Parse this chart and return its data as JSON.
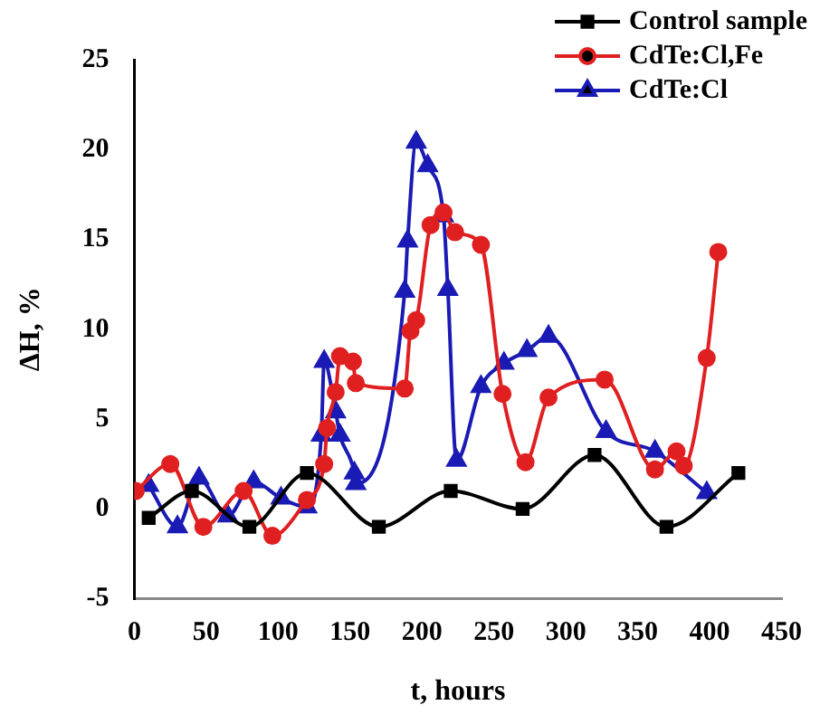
{
  "chart_data": {
    "type": "line",
    "xlabel": "t, hours",
    "ylabel": "ΔH, %",
    "xlim": [
      0,
      450
    ],
    "xticks": [
      0,
      50,
      100,
      150,
      200,
      250,
      300,
      350,
      400,
      450
    ],
    "ylim": [
      -5,
      25
    ],
    "yticks": [
      -5,
      0,
      5,
      10,
      15,
      20,
      25
    ],
    "grid": false,
    "legend": "top right",
    "line_style": "solid",
    "series": [
      {
        "name": "Control sample",
        "color": "#000000",
        "marker": "square",
        "x": [
          10,
          40,
          80,
          120,
          170,
          220,
          270,
          320,
          370,
          420
        ],
        "values": [
          -0.5,
          1,
          -1,
          2,
          -1,
          1,
          0,
          3,
          -1,
          2
        ]
      },
      {
        "name": "CdTe:Cl,Fe",
        "color": "#e02020",
        "marker": "circle",
        "x": [
          1,
          25,
          48,
          76,
          96,
          120,
          132,
          134,
          140,
          143,
          152,
          154,
          188,
          192,
          196,
          206,
          215,
          223,
          241,
          256,
          272,
          288,
          327,
          362,
          377,
          382,
          398,
          406
        ],
        "values": [
          1,
          2.5,
          -1,
          1,
          -1.5,
          0.5,
          2.5,
          4.5,
          6.5,
          8.5,
          8.2,
          7,
          6.7,
          9.9,
          10.5,
          15.8,
          16.5,
          15.4,
          14.7,
          6.4,
          2.6,
          6.2,
          7.2,
          2.2,
          3.2,
          2.4,
          8.4,
          14.3
        ]
      },
      {
        "name": "CdTe:Cl",
        "color": "#1a1ab4",
        "marker": "triangle",
        "x": [
          10,
          30,
          45,
          65,
          83,
          102,
          120,
          130,
          132,
          140,
          143,
          153,
          154,
          188,
          190,
          196,
          204,
          215,
          218,
          224,
          241,
          257,
          273,
          288,
          328,
          362,
          398
        ],
        "values": [
          1.3,
          -1,
          1.7,
          -0.4,
          1.5,
          0.6,
          0.1,
          4.1,
          8.2,
          5.4,
          4.1,
          2,
          1.4,
          12.1,
          14.9,
          20.4,
          19.1,
          16.3,
          12.2,
          2.7,
          6.8,
          8.1,
          8.8,
          9.6,
          4.3,
          3.2,
          0.9
        ]
      }
    ]
  }
}
